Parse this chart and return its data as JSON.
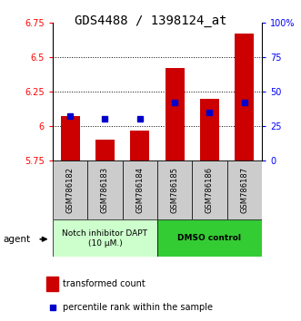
{
  "title": "GDS4488 / 1398124_at",
  "samples": [
    "GSM786182",
    "GSM786183",
    "GSM786184",
    "GSM786185",
    "GSM786186",
    "GSM786187"
  ],
  "bar_values": [
    6.07,
    5.9,
    5.97,
    6.42,
    6.2,
    6.67
  ],
  "bar_bottom": 5.75,
  "blue_dot_values": [
    6.07,
    6.05,
    6.05,
    6.17,
    6.1,
    6.17
  ],
  "ylim": [
    5.75,
    6.75
  ],
  "right_ylim": [
    0,
    100
  ],
  "right_yticks": [
    0,
    25,
    50,
    75,
    100
  ],
  "right_yticklabels": [
    "0",
    "25",
    "50",
    "75",
    "100%"
  ],
  "left_yticks": [
    5.75,
    6.0,
    6.25,
    6.5,
    6.75
  ],
  "left_yticklabels": [
    "5.75",
    "6",
    "6.25",
    "6.5",
    "6.75"
  ],
  "grid_values": [
    6.0,
    6.25,
    6.5
  ],
  "group1_label": "Notch inhibitor DAPT\n(10 μM.)",
  "group2_label": "DMSO control",
  "group1_indices": [
    0,
    1,
    2
  ],
  "group2_indices": [
    3,
    4,
    5
  ],
  "bar_color": "#cc0000",
  "dot_color": "#0000cc",
  "group1_bg": "#ccffcc",
  "group2_bg": "#33cc33",
  "agent_label": "agent",
  "legend_bar_label": "transformed count",
  "legend_dot_label": "percentile rank within the sample",
  "title_fontsize": 10,
  "tick_fontsize": 7,
  "label_fontsize": 7,
  "figsize": [
    3.31,
    3.54
  ],
  "dpi": 100
}
